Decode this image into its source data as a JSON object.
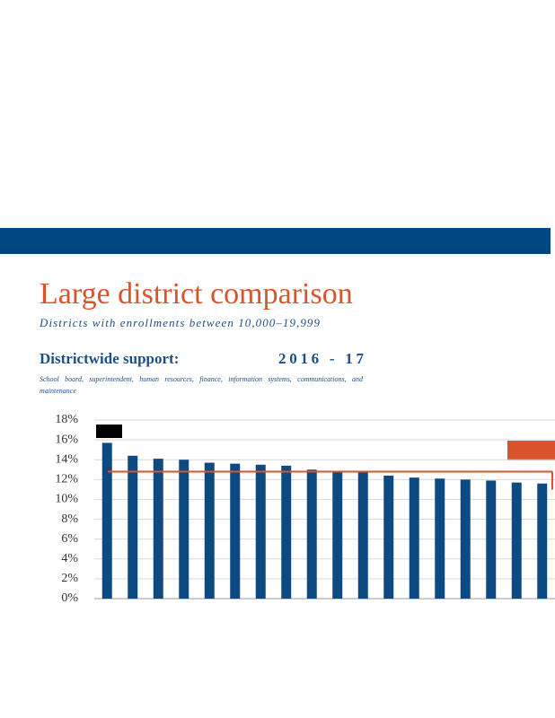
{
  "chart_data": {
    "type": "bar",
    "title": "Large district comparison",
    "subtitle": "Districts with enrollments between 10,000–19,999",
    "heading": "Districtwide support:",
    "year": "2016 - 17",
    "description": "School board, superintendent, human resources, finance, information systems, communications, and maintenance",
    "categories": [
      null,
      null,
      null,
      null,
      null,
      null,
      null,
      null,
      null,
      null,
      null,
      null,
      null,
      null,
      null,
      null,
      null,
      null
    ],
    "values": [
      15.7,
      14.4,
      14.1,
      14.0,
      13.7,
      13.6,
      13.5,
      13.4,
      13.0,
      12.8,
      12.8,
      12.4,
      12.2,
      12.1,
      12.0,
      11.9,
      11.7,
      11.6
    ],
    "color": "#0d4a82",
    "average": 12.8,
    "average_color": "#d9542a",
    "ylim": [
      0,
      18
    ],
    "yticks": [
      {
        "value": 0,
        "label": "0%"
      },
      {
        "value": 2,
        "label": "2%"
      },
      {
        "value": 4,
        "label": "4%"
      },
      {
        "value": 6,
        "label": "6%"
      },
      {
        "value": 8,
        "label": "8%"
      },
      {
        "value": 10,
        "label": "10%"
      },
      {
        "value": 12,
        "label": "12%"
      },
      {
        "value": 14,
        "label": "14%"
      },
      {
        "value": 16,
        "label": "16%"
      },
      {
        "value": 18,
        "label": "18%"
      }
    ],
    "grid": true
  }
}
